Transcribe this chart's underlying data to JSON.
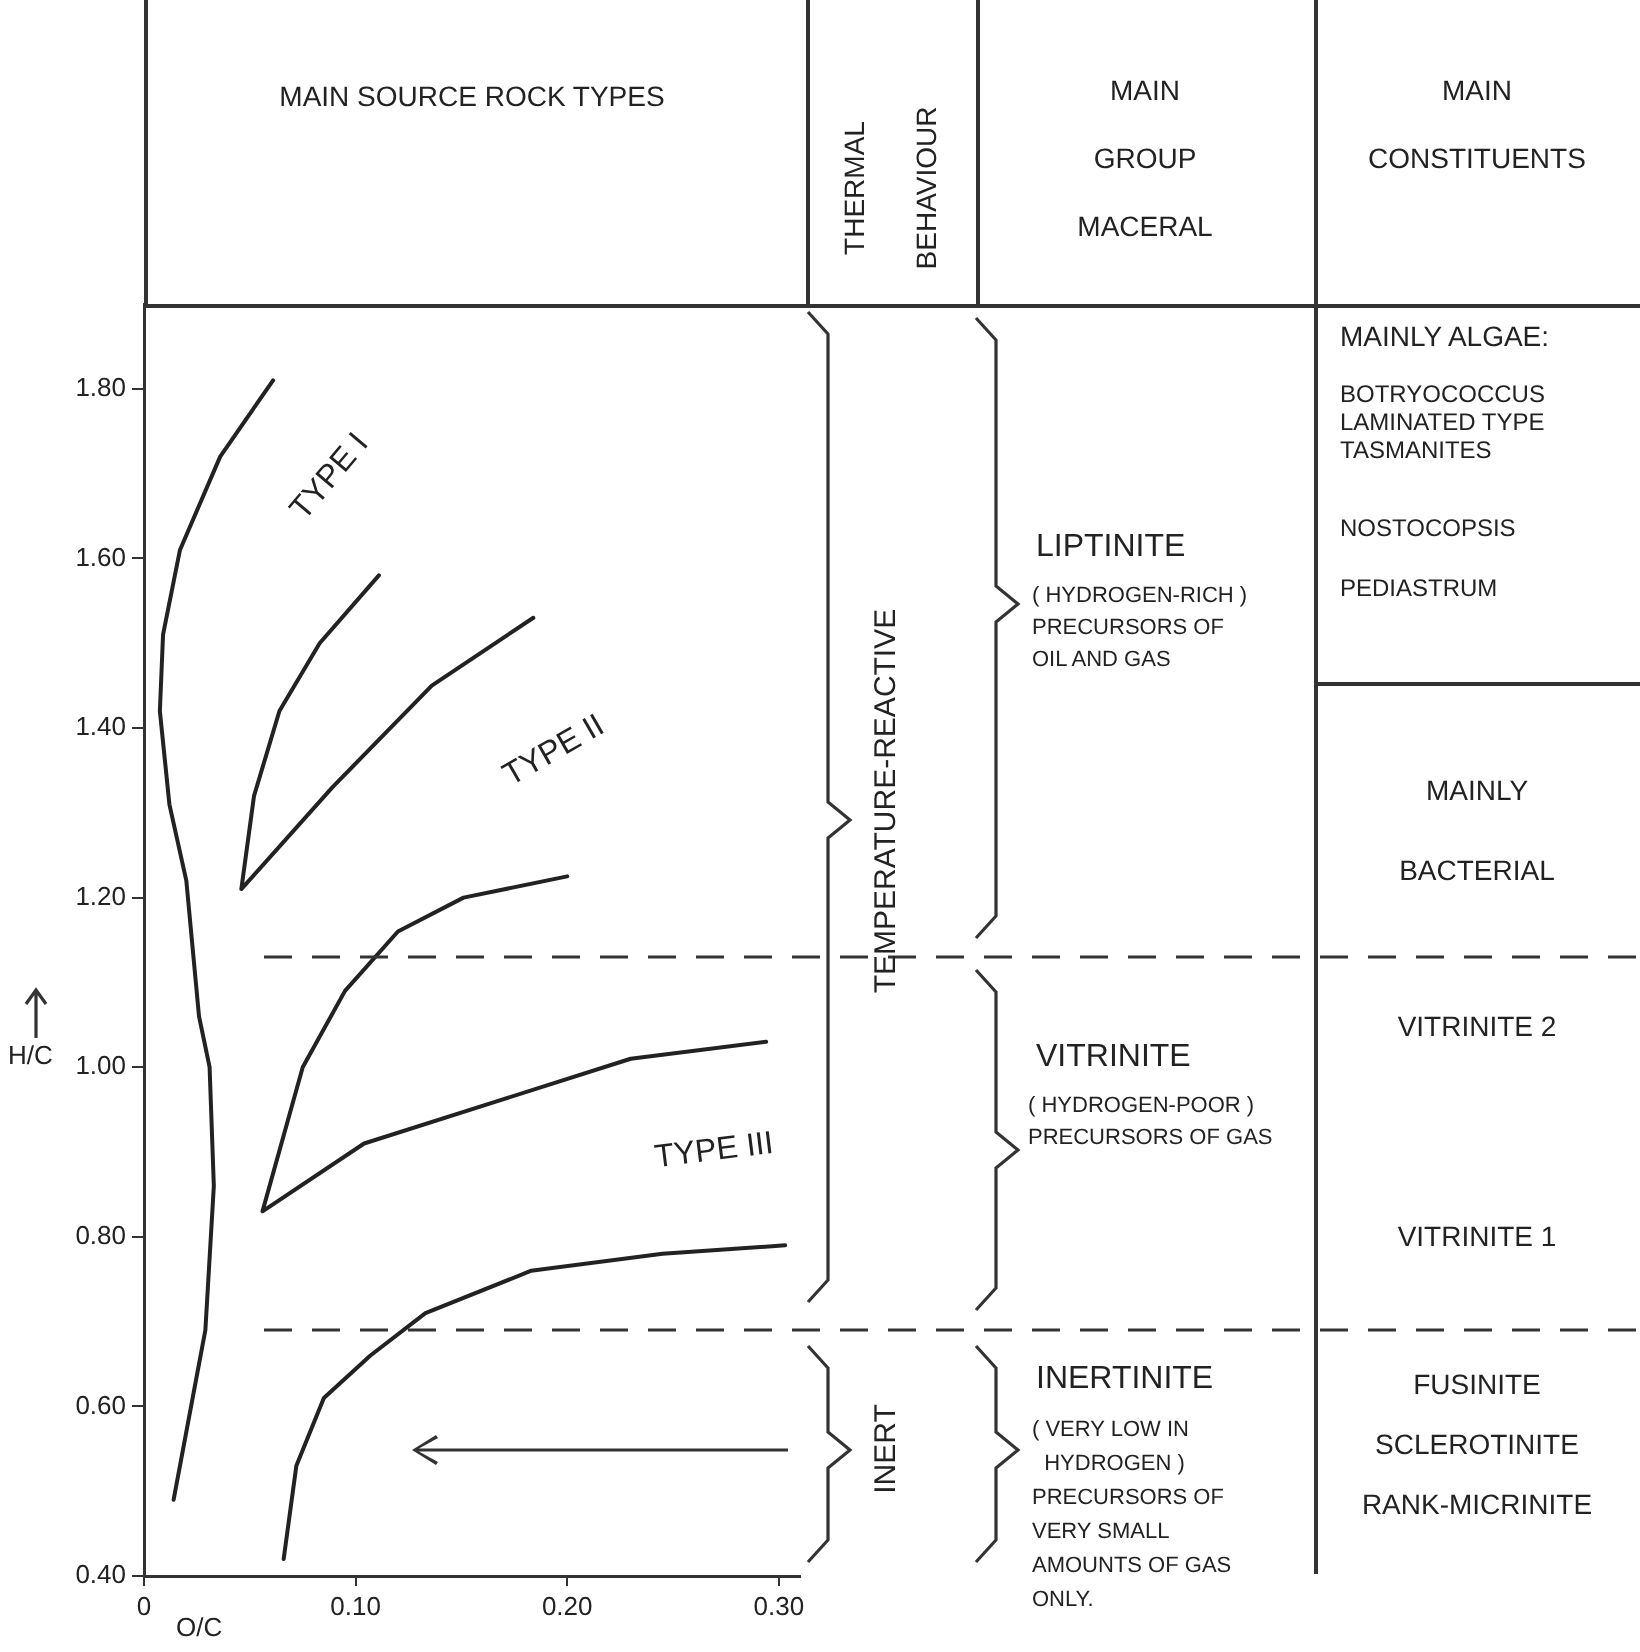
{
  "chart_data": {
    "type": "line",
    "xlabel": "O/C",
    "ylabel": "H/C",
    "xlim": [
      0,
      0.31
    ],
    "xticks": [
      0,
      {
        "value": 0.1,
        "label": "0.10"
      },
      {
        "value": 0.2,
        "label": "0.20"
      },
      {
        "value": 0.3,
        "label": "0.30"
      }
    ],
    "ylim": [
      0.4,
      1.9
    ],
    "yticks": [
      {
        "value": 0.4,
        "label": "0.40"
      },
      {
        "value": 0.6,
        "label": "0.60"
      },
      {
        "value": 0.8,
        "label": "0.80"
      },
      {
        "value": 1.0,
        "label": "1.00"
      },
      {
        "value": 1.2,
        "label": "1.20"
      },
      {
        "value": 1.4,
        "label": "1.40"
      },
      {
        "value": 1.6,
        "label": "1.60"
      },
      {
        "value": 1.8,
        "label": "1.80"
      }
    ],
    "marker": "none",
    "line_style": "solid",
    "legend": false,
    "series": [
      {
        "color": "#222222",
        "x": [
          0.061,
          0.036,
          0.017,
          0.009,
          0.0075,
          0.012,
          0.02,
          0.026,
          0.031,
          0.033,
          0.029,
          0.023,
          0.014
        ],
        "values": [
          1.81,
          1.72,
          1.61,
          1.51,
          1.42,
          1.31,
          1.22,
          1.06,
          1.0,
          0.86,
          0.69,
          0.61,
          0.49
        ]
      },
      {
        "color": "#222222",
        "x": [
          0.111,
          0.083,
          0.064,
          0.052,
          0.046,
          0.089,
          0.136,
          0.184
        ],
        "values": [
          1.58,
          1.5,
          1.42,
          1.32,
          1.21,
          1.33,
          1.45,
          1.53
        ]
      },
      {
        "color": "#222222",
        "x": [
          0.2,
          0.151,
          0.12,
          0.095,
          0.075,
          0.056,
          0.104,
          0.167,
          0.23,
          0.294
        ],
        "values": [
          1.225,
          1.2,
          1.16,
          1.09,
          1.0,
          0.83,
          0.91,
          0.96,
          1.01,
          1.03
        ]
      },
      {
        "color": "#222222",
        "x": [
          0.066,
          0.072,
          0.085,
          0.107,
          0.133,
          0.183,
          0.245,
          0.303
        ],
        "values": [
          0.42,
          0.53,
          0.61,
          0.66,
          0.71,
          0.76,
          0.78,
          0.79
        ]
      }
    ],
    "ref_lines": [
      {
        "axis": "y",
        "value": 1.13,
        "line_style": "dashed",
        "color": "#333333"
      },
      {
        "axis": "y",
        "value": 0.69,
        "line_style": "dashed",
        "color": "#333333"
      }
    ],
    "annotations": [
      "TYPE I",
      "TYPE II",
      "TYPE III",
      "MAIN SOURCE ROCK TYPES",
      "THERMAL\nBEHAVIOUR",
      "MAIN\nGROUP\nMACERAL",
      "MAIN\nCONSTITUENTS",
      "TEMPERATURE-REACTIVE",
      "INERT",
      "LIPTINITE",
      "( HYDROGEN-RICH )\nPRECURSORS OF\nOIL AND GAS",
      "VITRINITE",
      "( HYDROGEN-POOR )\nPRECURSORS OF GAS",
      "INERTINITE",
      "( VERY LOW IN\n  HYDROGEN )\nPRECURSORS OF\nVERY SMALL\nAMOUNTS OF GAS\nONLY.",
      "MAINLY ALGAE:",
      "BOTRYOCOCCUS\nLAMINATED TYPE\nTASMANITES",
      "NOSTOCOPSIS",
      "PEDIASTRUM",
      "MAINLY\n\nBACTERIAL",
      "VITRINITE 2",
      "VITRINITE 1",
      "FUSINITE",
      "SCLEROTINITE",
      "RANK-MICRINITE"
    ]
  }
}
